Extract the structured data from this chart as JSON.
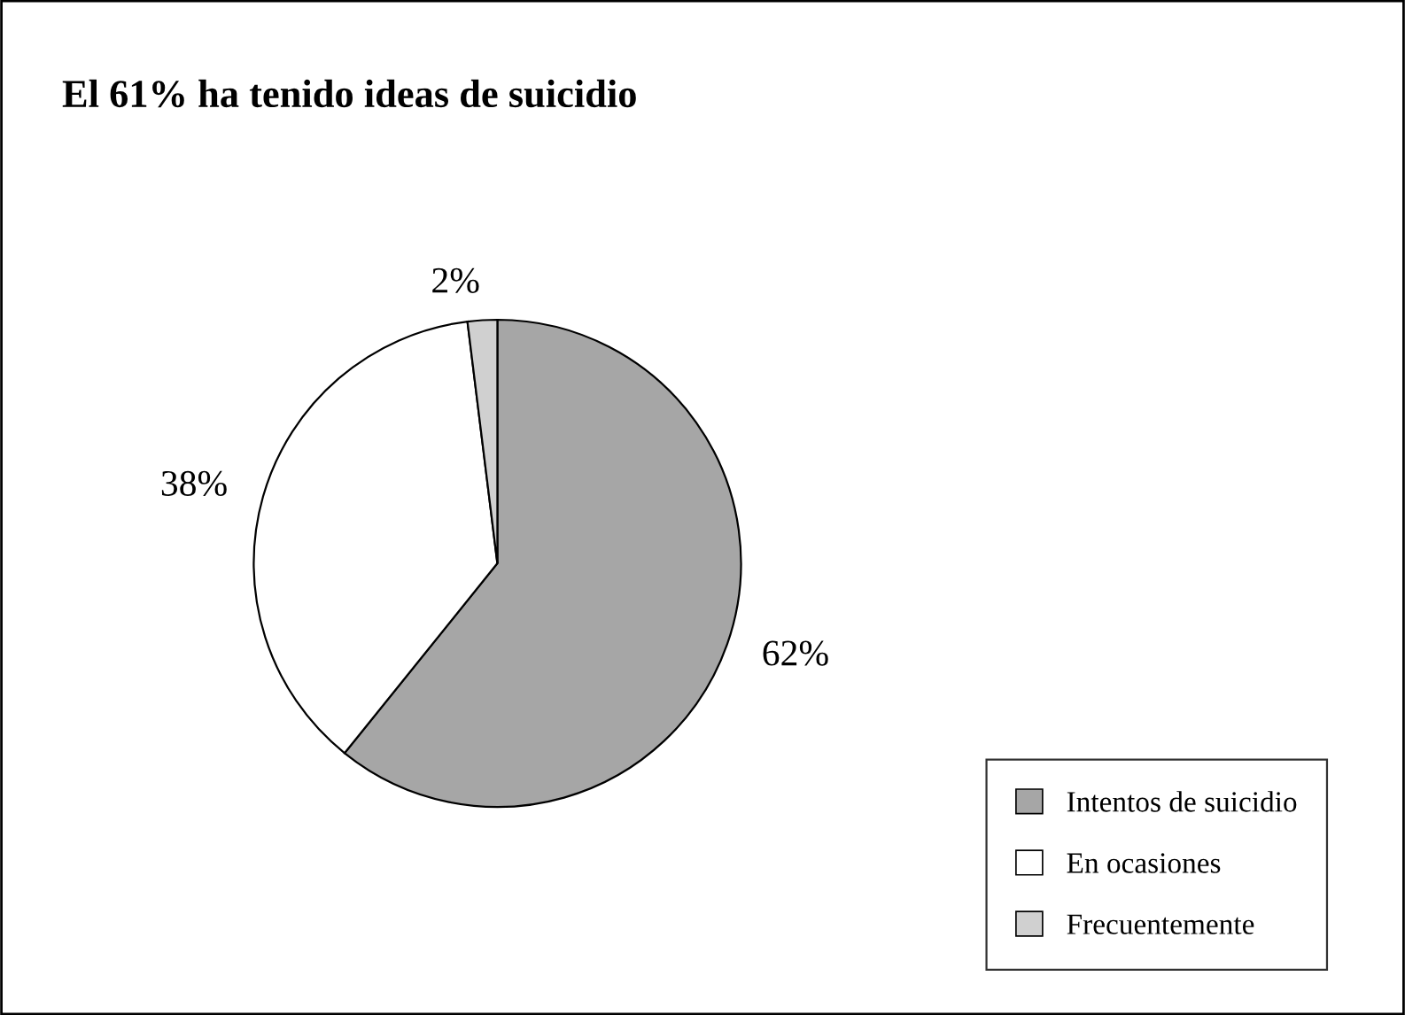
{
  "chart_data": {
    "type": "pie",
    "title": "El 61% ha tenido ideas de suicidio",
    "categories": [
      "Intentos de suicidio",
      "En ocasiones",
      "Frecuentemente"
    ],
    "values": [
      62,
      38,
      2
    ],
    "colors": [
      "#a6a6a6",
      "#ffffff",
      "#d0d0d0"
    ],
    "value_labels": [
      "62%",
      "38%",
      "2%"
    ],
    "legend": "bottom right"
  }
}
